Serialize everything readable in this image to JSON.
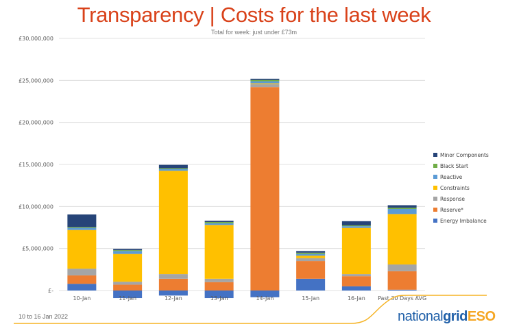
{
  "header": {
    "title": "Transparency | Costs for the last week",
    "subtitle": "Total for week: just under £73m"
  },
  "footer": {
    "date_range": "10 to 16 Jan 2022",
    "logo_part1": "national",
    "logo_part2": "grid",
    "logo_part3": "ESO"
  },
  "colors": {
    "title": "#d9421a",
    "energy_imbalance": "#4472c4",
    "reserve": "#ed7d31",
    "response": "#a5a5a5",
    "constraints": "#ffc000",
    "reactive": "#5b9bd5",
    "black_start": "#70ad47",
    "minor_components": "#264478",
    "brand_line": "#f5b324"
  },
  "chart_data": {
    "type": "bar",
    "stacked": true,
    "title": "Transparency | Costs for the last week",
    "subtitle": "Total for week: just under £73m",
    "xlabel": "",
    "ylabel": "",
    "ylim": [
      -1000000,
      30000000
    ],
    "yticks": [
      0,
      5000000,
      10000000,
      15000000,
      20000000,
      25000000,
      30000000
    ],
    "ytick_labels": [
      "£-",
      "£5,000,000",
      "£10,000,000",
      "£15,000,000",
      "£20,000,000",
      "£25,000,000",
      "£30,000,000"
    ],
    "grid": true,
    "legend_position": "right",
    "categories": [
      "10-Jan",
      "11-Jan",
      "12-Jan",
      "13-Jan",
      "14-Jan",
      "15-Jan",
      "16-Jan",
      "Past 30 Days AVG"
    ],
    "series": [
      {
        "name": "Energy Imbalance",
        "color": "#4472c4",
        "values": [
          800000,
          -900000,
          -600000,
          -900000,
          -800000,
          1400000,
          500000,
          100000
        ]
      },
      {
        "name": "Reserve*",
        "color": "#ed7d31",
        "values": [
          1000000,
          700000,
          1400000,
          1000000,
          24200000,
          2100000,
          1200000,
          2200000
        ]
      },
      {
        "name": "Response",
        "color": "#a5a5a5",
        "values": [
          800000,
          350000,
          550000,
          400000,
          350000,
          350000,
          250000,
          800000
        ]
      },
      {
        "name": "Constraints",
        "color": "#ffc000",
        "values": [
          4600000,
          3300000,
          12300000,
          6400000,
          100000,
          300000,
          5500000,
          6000000
        ]
      },
      {
        "name": "Reactive",
        "color": "#5b9bd5",
        "values": [
          250000,
          350000,
          200000,
          200000,
          250000,
          200000,
          200000,
          600000
        ]
      },
      {
        "name": "Black Start",
        "color": "#70ad47",
        "values": [
          100000,
          100000,
          100000,
          150000,
          150000,
          150000,
          100000,
          150000
        ]
      },
      {
        "name": "Minor Components",
        "color": "#264478",
        "values": [
          1500000,
          150000,
          400000,
          150000,
          150000,
          200000,
          500000,
          300000
        ]
      }
    ],
    "legend_order": [
      "Minor Components",
      "Black Start",
      "Reactive",
      "Constraints",
      "Response",
      "Reserve*",
      "Energy Imbalance"
    ]
  }
}
